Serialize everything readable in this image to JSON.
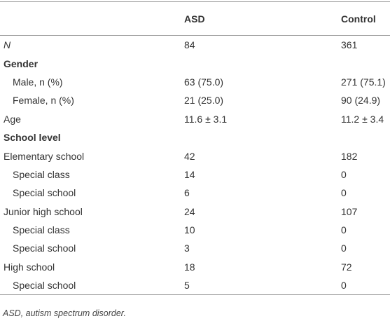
{
  "table": {
    "header": {
      "asd": "ASD",
      "control": "Control"
    },
    "rows": [
      [
        "N",
        "84",
        "361"
      ],
      [
        "Gender"
      ],
      [
        "Male, n (%)",
        "63 (75.0)",
        "271 (75.1)"
      ],
      [
        "Female, n (%)",
        "21 (25.0)",
        "90 (24.9)"
      ],
      [
        "Age",
        "11.6 ± 3.1",
        "11.2 ± 3.4"
      ],
      [
        "School level"
      ],
      [
        "Elementary school",
        "42",
        "182"
      ],
      [
        "Special class",
        "14",
        "0"
      ],
      [
        "Special school",
        "6",
        "0"
      ],
      [
        "Junior high school",
        "24",
        "107"
      ],
      [
        "Special class",
        "10",
        "0"
      ],
      [
        "Special school",
        "3",
        "0"
      ],
      [
        "High school",
        "18",
        "72"
      ],
      [
        "Special school",
        "5",
        "0"
      ]
    ]
  },
  "footnote": "ASD, autism spectrum disorder."
}
